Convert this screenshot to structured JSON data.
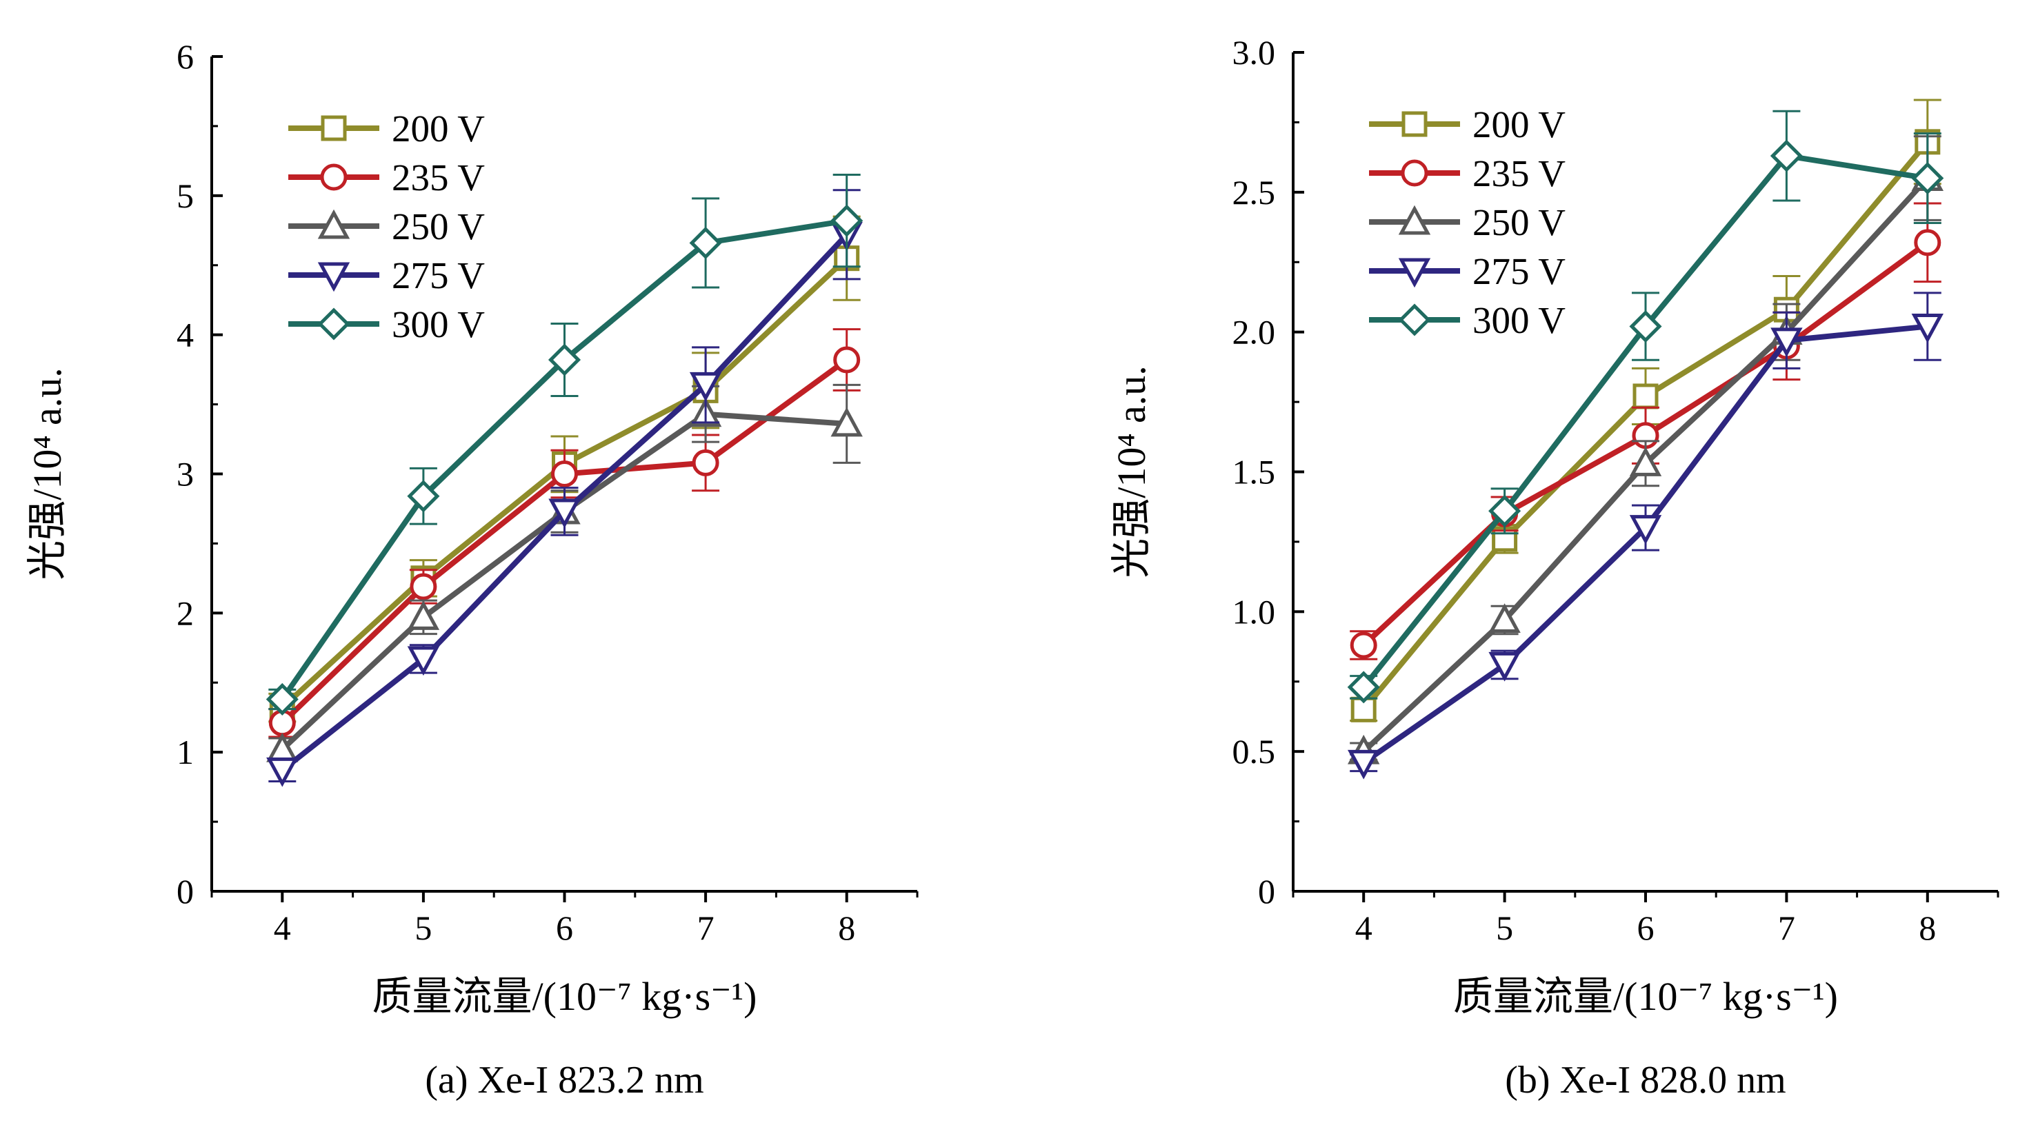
{
  "colors": {
    "200 V": "#8f8c2b",
    "235 V": "#c02025",
    "250 V": "#595959",
    "275 V": "#2e2680",
    "300 V": "#1f6b60"
  },
  "chart_data": [
    {
      "type": "line",
      "caption": "(a) Xe-I 823.2 nm",
      "xlabel": "质量流量/(10⁻⁷ kg·s⁻¹)",
      "ylabel": "光强/10⁴ a.u.",
      "xlim": [
        3.5,
        8.5
      ],
      "ylim": [
        0,
        6
      ],
      "xticks": [
        4,
        5,
        6,
        7,
        8
      ],
      "xtick_labels": [
        "4",
        "5",
        "6",
        "7",
        "8"
      ],
      "yticks": [
        0,
        1,
        2,
        3,
        4,
        5,
        6
      ],
      "ytick_labels": [
        "0",
        "1",
        "2",
        "3",
        "4",
        "5",
        "6"
      ],
      "grid": false,
      "legend_position": "top-left",
      "x": [
        4,
        5,
        6,
        7,
        8
      ],
      "series": [
        {
          "name": "200 V",
          "marker": "square",
          "values": [
            1.32,
            2.25,
            3.07,
            3.6,
            4.55
          ],
          "errors": [
            0.1,
            0.13,
            0.2,
            0.27,
            0.3
          ]
        },
        {
          "name": "235 V",
          "marker": "circle",
          "values": [
            1.21,
            2.19,
            3.0,
            3.08,
            3.82
          ],
          "errors": [
            0.1,
            0.12,
            0.17,
            0.2,
            0.22
          ]
        },
        {
          "name": "250 V",
          "marker": "triangle-up",
          "values": [
            1.02,
            1.97,
            2.73,
            3.43,
            3.36
          ],
          "errors": [
            0.08,
            0.12,
            0.15,
            0.2,
            0.28
          ]
        },
        {
          "name": "275 V",
          "marker": "triangle-down",
          "values": [
            0.87,
            1.67,
            2.73,
            3.64,
            4.72
          ],
          "errors": [
            0.08,
            0.1,
            0.17,
            0.27,
            0.32
          ]
        },
        {
          "name": "300 V",
          "marker": "diamond",
          "values": [
            1.38,
            2.84,
            3.82,
            4.66,
            4.82
          ],
          "errors": [
            0.07,
            0.2,
            0.26,
            0.32,
            0.33
          ]
        }
      ]
    },
    {
      "type": "line",
      "caption": "(b) Xe-I 828.0 nm",
      "xlabel": "质量流量/(10⁻⁷ kg·s⁻¹)",
      "ylabel": "光强/10⁴ a.u.",
      "xlim": [
        3.5,
        8.5
      ],
      "ylim": [
        0,
        3
      ],
      "xticks": [
        4,
        5,
        6,
        7,
        8
      ],
      "xtick_labels": [
        "4",
        "5",
        "6",
        "7",
        "8"
      ],
      "yticks": [
        0,
        0.5,
        1,
        1.5,
        2,
        2.5,
        3
      ],
      "ytick_labels": [
        "0",
        "0.5",
        "1.0",
        "1.5",
        "2.0",
        "2.5",
        "3.0"
      ],
      "grid": false,
      "legend_position": "top-left",
      "x": [
        4,
        5,
        6,
        7,
        8
      ],
      "series": [
        {
          "name": "200 V",
          "marker": "square",
          "values": [
            0.65,
            1.26,
            1.77,
            2.08,
            2.68
          ],
          "errors": [
            0.04,
            0.05,
            0.1,
            0.12,
            0.15
          ]
        },
        {
          "name": "235 V",
          "marker": "circle",
          "values": [
            0.88,
            1.35,
            1.63,
            1.95,
            2.32
          ],
          "errors": [
            0.05,
            0.06,
            0.1,
            0.12,
            0.14
          ]
        },
        {
          "name": "250 V",
          "marker": "triangle-up",
          "values": [
            0.5,
            0.97,
            1.53,
            2.0,
            2.55
          ],
          "errors": [
            0.03,
            0.05,
            0.08,
            0.1,
            0.15
          ]
        },
        {
          "name": "275 V",
          "marker": "triangle-down",
          "values": [
            0.46,
            0.81,
            1.3,
            1.97,
            2.02
          ],
          "errors": [
            0.03,
            0.05,
            0.08,
            0.1,
            0.12
          ]
        },
        {
          "name": "300 V",
          "marker": "diamond",
          "values": [
            0.73,
            1.36,
            2.02,
            2.63,
            2.55
          ],
          "errors": [
            0.04,
            0.08,
            0.12,
            0.16,
            0.16
          ]
        }
      ]
    }
  ]
}
